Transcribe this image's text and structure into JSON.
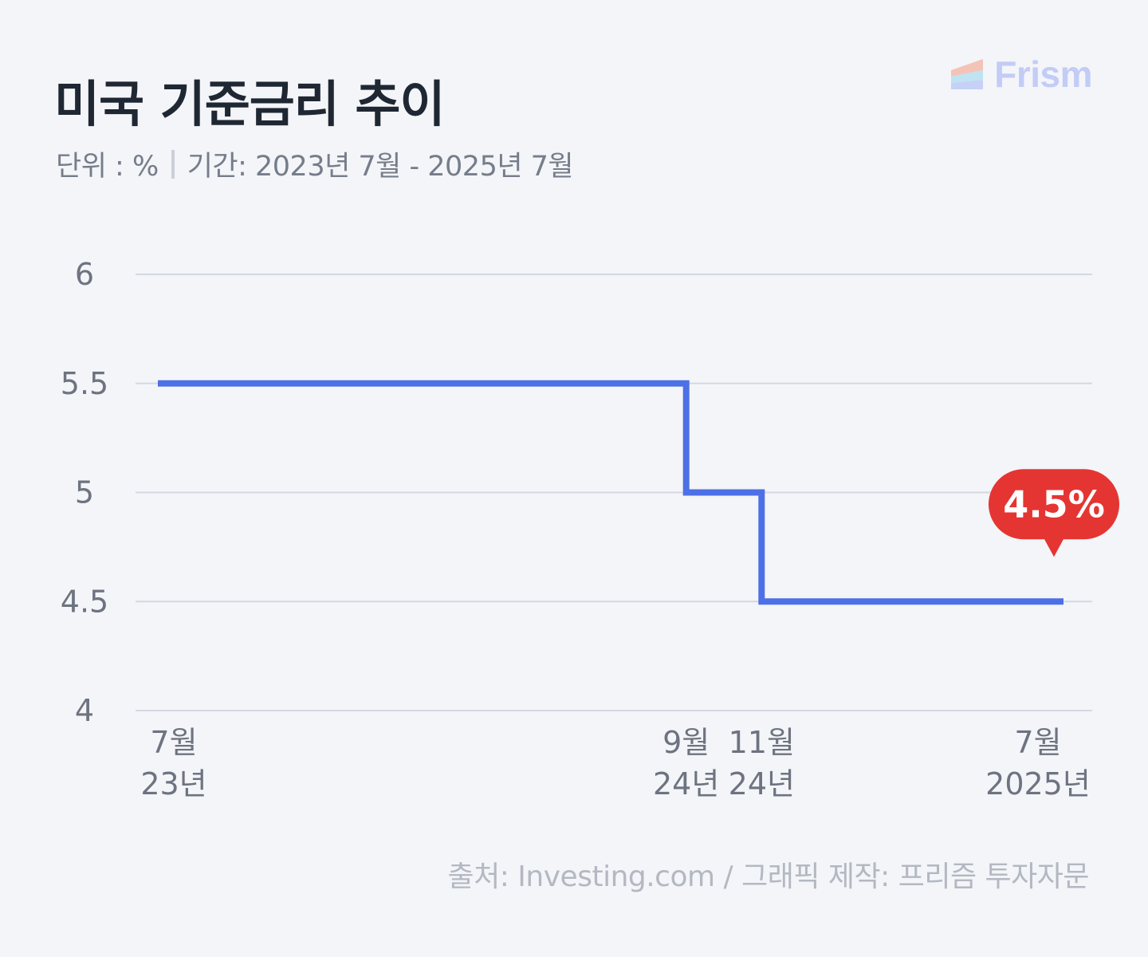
{
  "header": {
    "title": "미국 기준금리 추이",
    "unit": "단위 : %",
    "period": "기간: 2023년 7월 - 2025년 7월"
  },
  "brand": {
    "name": "Frism",
    "color": "#c3ccf6"
  },
  "footer": {
    "source": "출처: Investing.com  / 그래픽 제작: 프리즘 투자자문"
  },
  "colors": {
    "line": "#4d70e6",
    "callout": "#e53532",
    "grid": "#d3d8e2",
    "axis_text": "#6d7380"
  },
  "chart_data": {
    "type": "line",
    "step": true,
    "ylim": [
      4,
      6
    ],
    "yticks": [
      "6",
      "5.5",
      "5",
      "4.5",
      "4"
    ],
    "xlim": [
      "2023-07",
      "2025-07"
    ],
    "xticks": [
      {
        "x": "2023-07",
        "month": "7월",
        "year": "23년"
      },
      {
        "x": "2024-09",
        "month": "9월",
        "year": "24년"
      },
      {
        "x": "2024-11",
        "month": "11월",
        "year": "24년"
      },
      {
        "x": "2025-07",
        "month": "7월",
        "year": "2025년"
      }
    ],
    "series": [
      {
        "points": [
          {
            "x": "2023-07",
            "y": 5.5
          },
          {
            "x": "2024-09",
            "y": 5.5
          },
          {
            "x": "2024-09",
            "y": 5.0
          },
          {
            "x": "2024-11",
            "y": 5.0
          },
          {
            "x": "2024-11",
            "y": 4.5
          },
          {
            "x": "2025-07",
            "y": 4.5
          }
        ]
      }
    ],
    "callout": {
      "x": "2025-07",
      "y": 4.5,
      "label": "4.5%"
    },
    "grid": true
  }
}
